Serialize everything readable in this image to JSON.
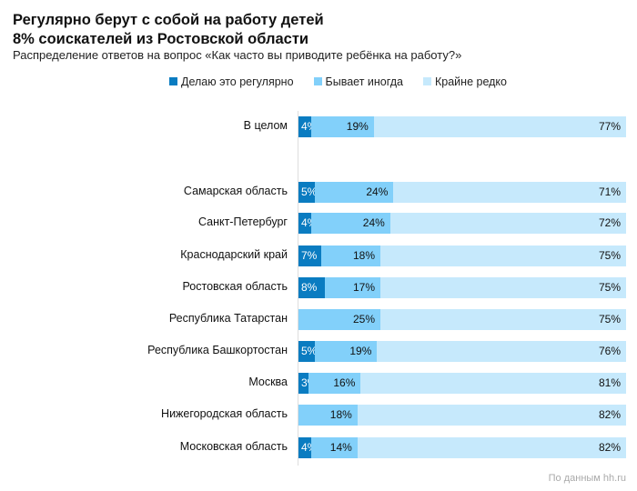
{
  "title_line1": "Регулярно берут с собой на работу детей",
  "title_line2": "8% соискателей из Ростовской области",
  "subtitle": "Распределение ответов на вопрос «Как часто вы приводите ребёнка на работу?»",
  "source": "По данным hh.ru",
  "chart_data": {
    "type": "bar",
    "orientation": "horizontal",
    "stacked": true,
    "legend_position": "top",
    "colors": [
      "#0a7cc1",
      "#82d0fa",
      "#c6e9fc"
    ],
    "series": [
      {
        "name": "Делаю это регулярно",
        "values": [
          4,
          5,
          4,
          7,
          8,
          0,
          5,
          3,
          0,
          4
        ]
      },
      {
        "name": "Бывает иногда",
        "values": [
          19,
          24,
          24,
          18,
          17,
          25,
          19,
          16,
          18,
          14
        ]
      },
      {
        "name": "Крайне редко",
        "values": [
          77,
          71,
          72,
          75,
          75,
          75,
          76,
          81,
          82,
          82
        ]
      }
    ],
    "categories": [
      "В целом",
      "Самарская область",
      "Санкт-Петербург",
      "Краснодарский край",
      "Ростовская область",
      "Республика Татарстан",
      "Республика Башкортостан",
      "Москва",
      "Нижегородская область",
      "Московская область"
    ],
    "value_suffix": "%"
  }
}
